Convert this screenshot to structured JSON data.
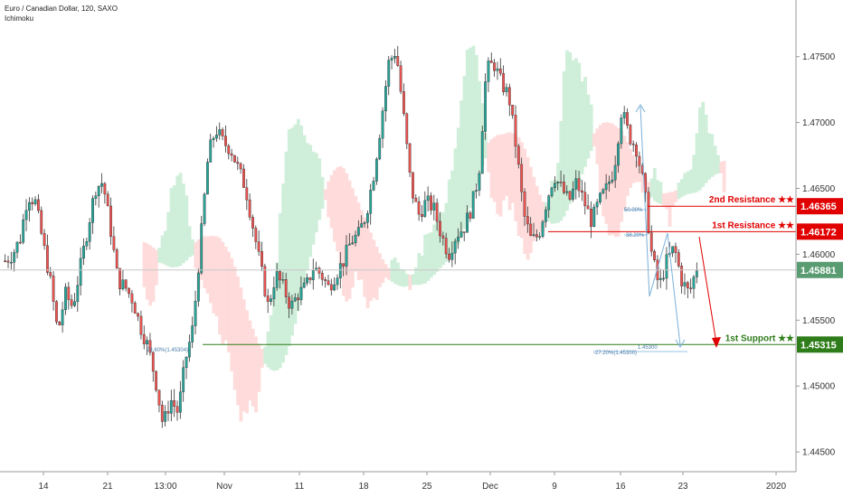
{
  "header": {
    "title": "Euro / Canadian Dollar, 120, SAXO",
    "indicator": "Ichimoku"
  },
  "colors": {
    "up_candle": "#26a69a",
    "down_candle": "#ef5350",
    "candle_wick": "#333333",
    "resistance": "#e00000",
    "support": "#2e7d1a",
    "current_price": "#5a9c72",
    "cloud_bull": "#c8ecd3",
    "cloud_bear": "#ffd6d6",
    "fib": "#7ab0d9"
  },
  "levels": {
    "second_resistance": {
      "label": "2nd Resistance ★★",
      "price_text": "1.46365",
      "price": 1.46365
    },
    "first_resistance": {
      "label": "1st Resistance ★★",
      "price_text": "1.46172",
      "price": 1.46172
    },
    "first_support": {
      "label": "1st Support ★★",
      "price_text": "1.45315",
      "price": 1.45315
    },
    "current_price": {
      "price_text": "1.45881",
      "price": 1.45881
    }
  },
  "fib_labels": {
    "left": "78.60%(1.45304)",
    "top_retrace": "50.00%",
    "mid_retrace": "38.20%",
    "lower_a": "-27.20%(1.45300)",
    "lower_b": "1.45300"
  },
  "chart_data": {
    "type": "candlestick",
    "title": "Euro / Canadian Dollar, 120, SAXO",
    "y_axis": {
      "ticks": [
        1.445,
        1.45,
        1.455,
        1.46,
        1.465,
        1.47,
        1.475
      ],
      "tick_labels": [
        "1.44500",
        "1.45000",
        "1.45500",
        "1.46000",
        "1.46500",
        "1.47000",
        "1.47500"
      ],
      "range": [
        1.4435,
        1.4793
      ],
      "position": "right"
    },
    "x_axis": {
      "tick_labels": [
        "14",
        "21",
        "13:00",
        "Nov",
        "11",
        "18",
        "25",
        "Dec",
        "9",
        "16",
        "23",
        "2020"
      ]
    },
    "price_path": [
      [
        0,
        1.4595
      ],
      [
        1,
        1.46
      ],
      [
        2,
        1.4612
      ],
      [
        3,
        1.4645
      ],
      [
        4,
        1.464
      ],
      [
        5,
        1.461
      ],
      [
        6,
        1.458
      ],
      [
        7,
        1.454
      ],
      [
        8,
        1.457
      ],
      [
        9,
        1.456
      ],
      [
        10,
        1.459
      ],
      [
        11,
        1.462
      ],
      [
        12,
        1.465
      ],
      [
        13,
        1.4655
      ],
      [
        14,
        1.462
      ],
      [
        15,
        1.458
      ],
      [
        16,
        1.4575
      ],
      [
        17,
        1.4565
      ],
      [
        18,
        1.4545
      ],
      [
        19,
        1.453
      ],
      [
        20,
        1.4505
      ],
      [
        21,
        1.447
      ],
      [
        22,
        1.449
      ],
      [
        23,
        1.448
      ],
      [
        24,
        1.452
      ],
      [
        25,
        1.4545
      ],
      [
        26,
        1.461
      ],
      [
        27,
        1.4675
      ],
      [
        28,
        1.4695
      ],
      [
        29,
        1.4685
      ],
      [
        30,
        1.468
      ],
      [
        31,
        1.4665
      ],
      [
        32,
        1.465
      ],
      [
        33,
        1.462
      ],
      [
        34,
        1.459
      ],
      [
        35,
        1.456
      ],
      [
        36,
        1.4585
      ],
      [
        37,
        1.4575
      ],
      [
        38,
        1.456
      ],
      [
        39,
        1.457
      ],
      [
        40,
        1.4575
      ],
      [
        41,
        1.459
      ],
      [
        42,
        1.4585
      ],
      [
        43,
        1.4575
      ],
      [
        44,
        1.4585
      ],
      [
        45,
        1.4595
      ],
      [
        46,
        1.461
      ],
      [
        47,
        1.4615
      ],
      [
        48,
        1.463
      ],
      [
        49,
        1.466
      ],
      [
        50,
        1.47
      ],
      [
        51,
        1.4745
      ],
      [
        52,
        1.4755
      ],
      [
        53,
        1.4705
      ],
      [
        54,
        1.465
      ],
      [
        55,
        1.463
      ],
      [
        56,
        1.464
      ],
      [
        57,
        1.4635
      ],
      [
        58,
        1.4615
      ],
      [
        59,
        1.46
      ],
      [
        60,
        1.4615
      ],
      [
        61,
        1.462
      ],
      [
        62,
        1.4635
      ],
      [
        63,
        1.466
      ],
      [
        64,
        1.474
      ],
      [
        65,
        1.4745
      ],
      [
        66,
        1.473
      ],
      [
        67,
        1.472
      ],
      [
        68,
        1.468
      ],
      [
        69,
        1.463
      ],
      [
        70,
        1.461
      ],
      [
        71,
        1.4615
      ],
      [
        72,
        1.464
      ],
      [
        73,
        1.466
      ],
      [
        74,
        1.465
      ],
      [
        75,
        1.464
      ],
      [
        76,
        1.4655
      ],
      [
        77,
        1.464
      ],
      [
        78,
        1.4625
      ],
      [
        79,
        1.464
      ],
      [
        80,
        1.465
      ],
      [
        81,
        1.4665
      ],
      [
        82,
        1.471
      ],
      [
        83,
        1.469
      ],
      [
        84,
        1.468
      ],
      [
        85,
        1.465
      ],
      [
        86,
        1.46
      ],
      [
        87,
        1.4575
      ],
      [
        88,
        1.4595
      ],
      [
        89,
        1.4605
      ],
      [
        90,
        1.458
      ],
      [
        91,
        1.457
      ],
      [
        92,
        1.459
      ]
    ],
    "annotations": [
      "2nd Resistance ★★ 1.46365",
      "1st Resistance ★★ 1.46172",
      "1st Support ★★ 1.45315",
      "Current 1.45881"
    ]
  }
}
